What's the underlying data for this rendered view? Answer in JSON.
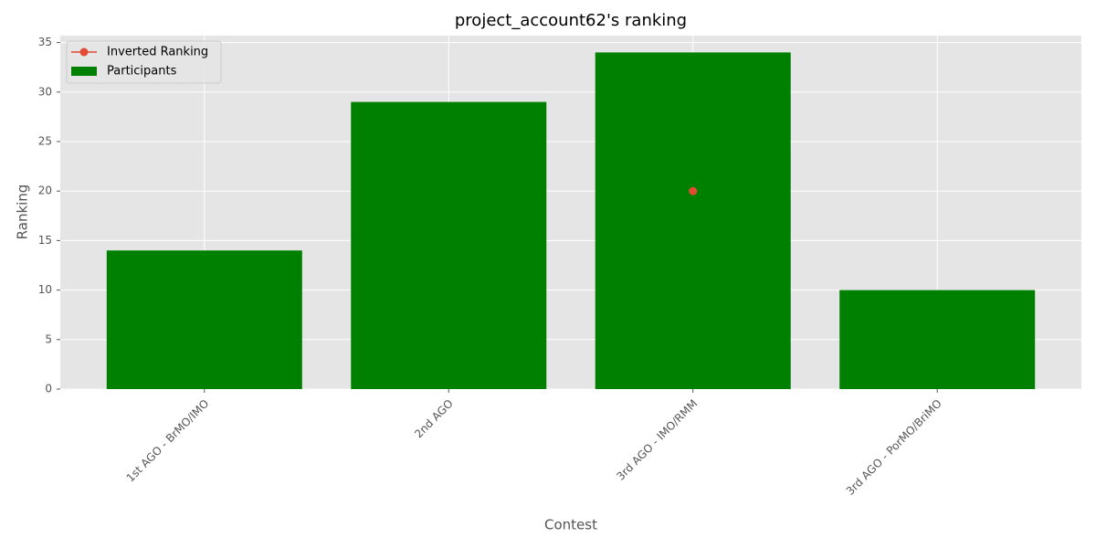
{
  "chart_data": {
    "type": "bar",
    "title": "project_account62's ranking",
    "x_label": "Contest",
    "y_label": "Ranking",
    "categories": [
      "1st AGO - BrMO/IMO",
      "2nd AGO",
      "3rd AGO - IMO/RMM",
      "3rd AGO - PorMO/BriMO"
    ],
    "series": [
      {
        "name": "Inverted Ranking",
        "type": "line",
        "color": "#E24A33",
        "values": [
          null,
          null,
          20,
          null
        ]
      },
      {
        "name": "Participants",
        "type": "bar",
        "color": "#008000",
        "values": [
          14,
          29,
          34,
          10
        ]
      }
    ],
    "ylim": [
      0,
      35.7
    ],
    "yticks": [
      0,
      5,
      10,
      15,
      20,
      25,
      30,
      35
    ],
    "grid": true,
    "legend": "upper left"
  }
}
